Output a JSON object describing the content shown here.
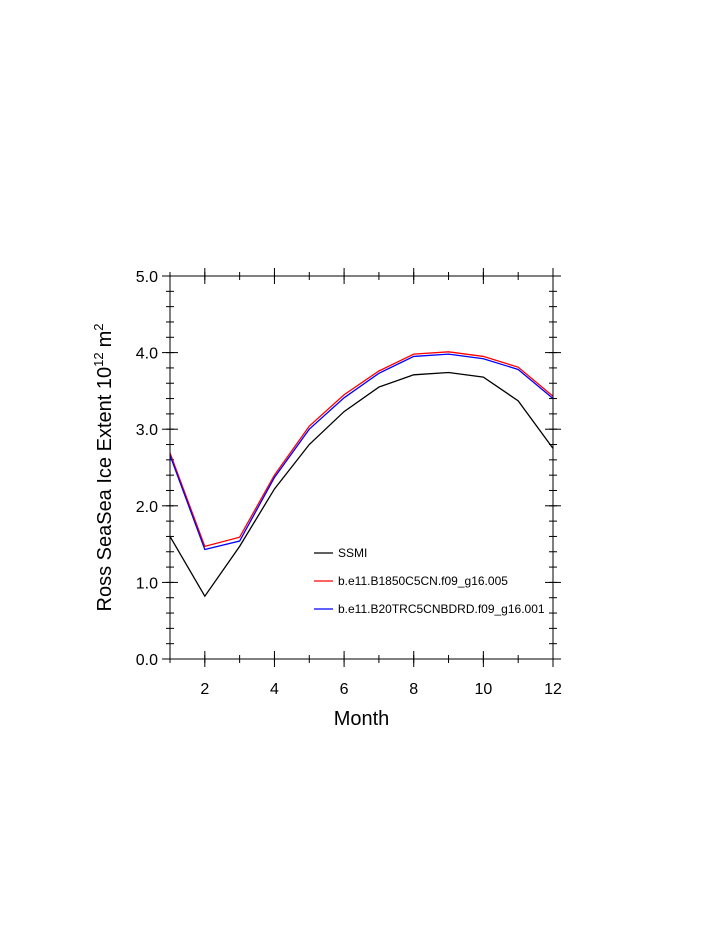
{
  "chart_data": {
    "type": "line",
    "xlabel": "Month",
    "ylabel": "Ross SeaSea Ice Extent 10",
    "ylabel_superscript": "12",
    "ylabel_unit": "m",
    "ylabel_unit_superscript": "2",
    "xlim": [
      1,
      12
    ],
    "ylim": [
      0.0,
      5.0
    ],
    "xticks": [
      2,
      4,
      6,
      8,
      10,
      12
    ],
    "yticks": [
      0.0,
      1.0,
      2.0,
      3.0,
      4.0,
      5.0
    ],
    "xtick_labels": [
      "2",
      "4",
      "6",
      "8",
      "10",
      "12"
    ],
    "ytick_labels": [
      "0.0",
      "1.0",
      "2.0",
      "3.0",
      "4.0",
      "5.0"
    ],
    "grid": false,
    "legend_position": "inside-lower-right",
    "x": [
      1,
      2,
      3,
      4,
      5,
      6,
      7,
      8,
      9,
      10,
      11,
      12
    ],
    "series": [
      {
        "name": "SSMI",
        "color": "#000000",
        "values": [
          1.6,
          0.82,
          1.47,
          2.22,
          2.8,
          3.23,
          3.55,
          3.71,
          3.74,
          3.68,
          3.37,
          2.75
        ]
      },
      {
        "name": "b.e11.B1850C5CN.f09_g16.005",
        "color": "#ff0000",
        "values": [
          2.69,
          1.47,
          1.59,
          2.4,
          3.04,
          3.45,
          3.76,
          3.98,
          4.01,
          3.95,
          3.81,
          3.43
        ]
      },
      {
        "name": "b.e11.B20TRC5CNBDRD.f09_g16.001",
        "color": "#0000ff",
        "values": [
          2.66,
          1.43,
          1.54,
          2.37,
          3.0,
          3.41,
          3.73,
          3.95,
          3.98,
          3.92,
          3.78,
          3.4
        ]
      }
    ]
  }
}
